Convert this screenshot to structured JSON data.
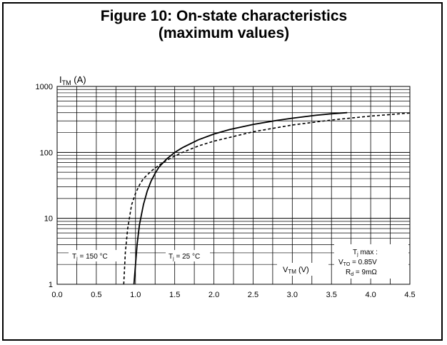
{
  "figure": {
    "title_line1": "Figure 10: On-state characteristics",
    "title_line2": "(maximum values)"
  },
  "chart_data": {
    "type": "line",
    "title": "Figure 10: On-state characteristics (maximum values)",
    "xlabel": "VTM (V)",
    "ylabel": "ITM (A)",
    "xlim": [
      0.0,
      4.5
    ],
    "ylim": [
      1,
      1000
    ],
    "y_scale": "log",
    "grid": true,
    "x_ticks": [
      "0.0",
      "0.5",
      "1.0",
      "1.5",
      "2.0",
      "2.5",
      "3.0",
      "3.5",
      "4.0",
      "4.5"
    ],
    "y_ticks": [
      "1",
      "10",
      "100",
      "1000"
    ],
    "series": [
      {
        "name": "Tj = 25 °C",
        "style": "solid",
        "color": "#000000",
        "x": [
          0.98,
          1.0,
          1.02,
          1.05,
          1.1,
          1.15,
          1.2,
          1.25,
          1.3,
          1.4,
          1.5,
          1.6,
          1.8,
          2.0,
          2.2,
          2.5,
          2.8,
          3.0,
          3.3,
          3.5,
          3.7
        ],
        "y": [
          1,
          2,
          4,
          8,
          16,
          26,
          37,
          48,
          60,
          80,
          100,
          118,
          155,
          190,
          222,
          265,
          305,
          330,
          365,
          385,
          400
        ]
      },
      {
        "name": "Tj = 150 °C",
        "style": "dashed",
        "color": "#000000",
        "x": [
          0.85,
          0.87,
          0.9,
          0.95,
          1.0,
          1.05,
          1.1,
          1.2,
          1.3,
          1.4,
          1.5,
          1.6,
          1.8,
          2.0,
          2.5,
          3.0,
          3.5,
          4.0,
          4.5
        ],
        "y": [
          1,
          3,
          7,
          16,
          24,
          32,
          40,
          52,
          64,
          76,
          88,
          100,
          125,
          148,
          205,
          260,
          310,
          355,
          395
        ]
      }
    ],
    "annotations": {
      "tj150": "Tj = 150 °C",
      "tj25": "Tj = 25 °C",
      "vtm_label": "VTM (V)",
      "tjmax_line1": "Tj max :",
      "tjmax_line2": "VTO = 0.85V",
      "tjmax_line3": "Rd = 9mΩ"
    }
  }
}
